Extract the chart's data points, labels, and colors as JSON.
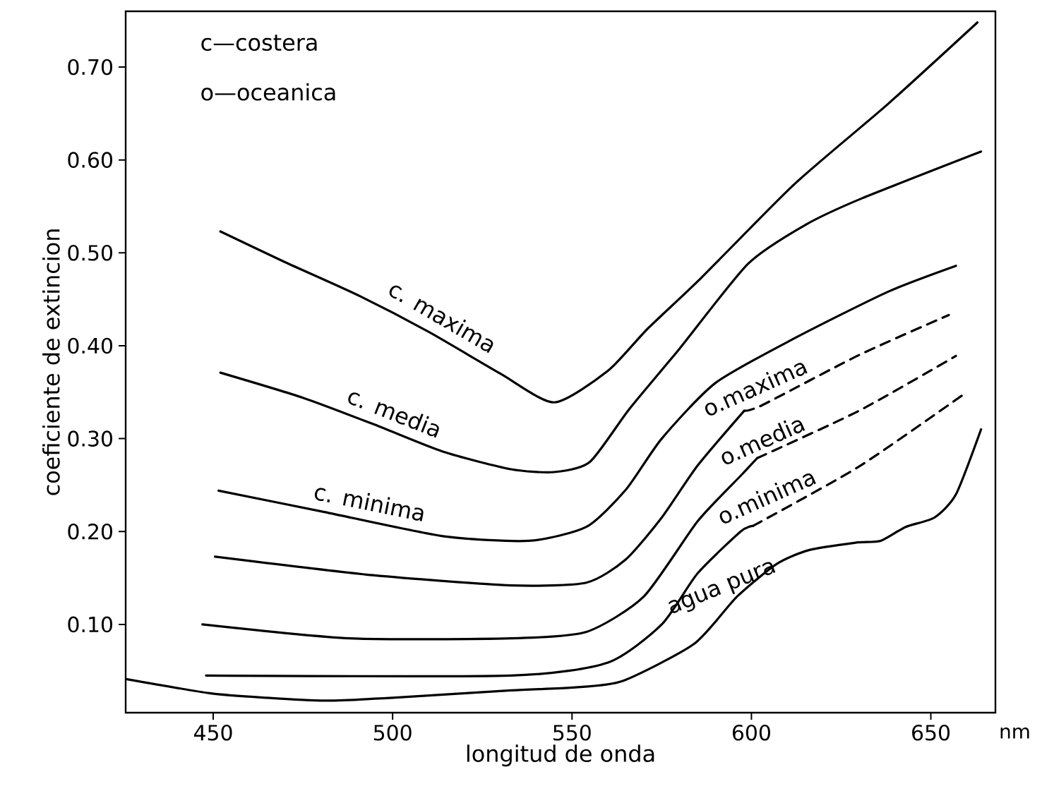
{
  "chart_data": {
    "type": "line",
    "xlabel": "longitud de onda",
    "ylabel": "coeficiente de extincion",
    "annotations": [
      "c—costera",
      "o—oceanica",
      "nm"
    ],
    "xlim": [
      425.6,
      668
    ],
    "ylim": [
      0.005,
      0.76
    ],
    "xticks": [
      450,
      500,
      550,
      600,
      650
    ],
    "yticks": [
      {
        "value": 0.1,
        "label": "0.10"
      },
      {
        "value": 0.2,
        "label": "0.20"
      },
      {
        "value": 0.3,
        "label": "0.30"
      },
      {
        "value": 0.4,
        "label": "0.40"
      },
      {
        "value": 0.5,
        "label": "0.50"
      },
      {
        "value": 0.6,
        "label": "0.60"
      },
      {
        "value": 0.7,
        "label": "0.70"
      }
    ],
    "series": [
      {
        "name": "c. maxima",
        "color": "#000000",
        "line_style": "solid",
        "x": [
          452,
          470,
          490,
          510,
          530,
          545,
          560,
          571,
          586,
          612,
          638,
          663
        ],
        "values": [
          0.523,
          0.49,
          0.455,
          0.415,
          0.37,
          0.339,
          0.373,
          0.418,
          0.473,
          0.574,
          0.66,
          0.748
        ]
      },
      {
        "name": "c. media",
        "color": "#000000",
        "line_style": "solid",
        "x": [
          452,
          475,
          495,
          514,
          533,
          545,
          555,
          566,
          580,
          599,
          615,
          631,
          664
        ],
        "values": [
          0.371,
          0.344,
          0.315,
          0.286,
          0.267,
          0.264,
          0.275,
          0.332,
          0.397,
          0.488,
          0.53,
          0.559,
          0.609
        ]
      },
      {
        "name": "c. minima",
        "color": "#000000",
        "line_style": "solid",
        "x": [
          451.5,
          481,
          514,
          538,
          554,
          565,
          575,
          590,
          612,
          638,
          657
        ],
        "values": [
          0.244,
          0.221,
          0.195,
          0.19,
          0.205,
          0.245,
          0.3,
          0.36,
          0.408,
          0.458,
          0.486
        ]
      },
      {
        "name": "o.maxima",
        "color": "#000000",
        "line_style": "solid",
        "x": [
          450.5,
          494.5,
          533,
          554,
          565,
          575,
          585,
          598
        ],
        "values": [
          0.173,
          0.153,
          0.142,
          0.145,
          0.17,
          0.215,
          0.271,
          0.33
        ]
      },
      {
        "color": "#000000",
        "line_style": "dashed",
        "x": [
          598,
          603,
          630,
          655
        ],
        "values": [
          0.33,
          0.336,
          0.39,
          0.433
        ]
      },
      {
        "name": "o.media",
        "color": "#000000",
        "line_style": "solid",
        "x": [
          447,
          488,
          533,
          554,
          570,
          585,
          597,
          601.6
        ],
        "values": [
          0.1,
          0.085,
          0.085,
          0.092,
          0.13,
          0.211,
          0.26,
          0.279
        ]
      },
      {
        "color": "#000000",
        "line_style": "dashed",
        "x": [
          601.6,
          630,
          657
        ],
        "values": [
          0.279,
          0.33,
          0.389
        ]
      },
      {
        "name": "o.minima",
        "color": "#000000",
        "line_style": "solid",
        "x": [
          448,
          533,
          560,
          575,
          585,
          597,
          600.4
        ],
        "values": [
          0.045,
          0.045,
          0.059,
          0.1,
          0.155,
          0.2,
          0.206
        ]
      },
      {
        "color": "#000000",
        "line_style": "dashed",
        "x": [
          600.4,
          630,
          660
        ],
        "values": [
          0.206,
          0.27,
          0.35
        ]
      },
      {
        "name": "agua pura",
        "color": "#000000",
        "line_style": "solid",
        "x": [
          426,
          449,
          465,
          481,
          500,
          533,
          550,
          564,
          584,
          596,
          607,
          616,
          629,
          636,
          643,
          651,
          657,
          664
        ],
        "values": [
          0.041,
          0.026,
          0.021,
          0.018,
          0.021,
          0.029,
          0.032,
          0.039,
          0.079,
          0.13,
          0.165,
          0.18,
          0.188,
          0.19,
          0.205,
          0.215,
          0.24,
          0.31
        ]
      }
    ]
  }
}
